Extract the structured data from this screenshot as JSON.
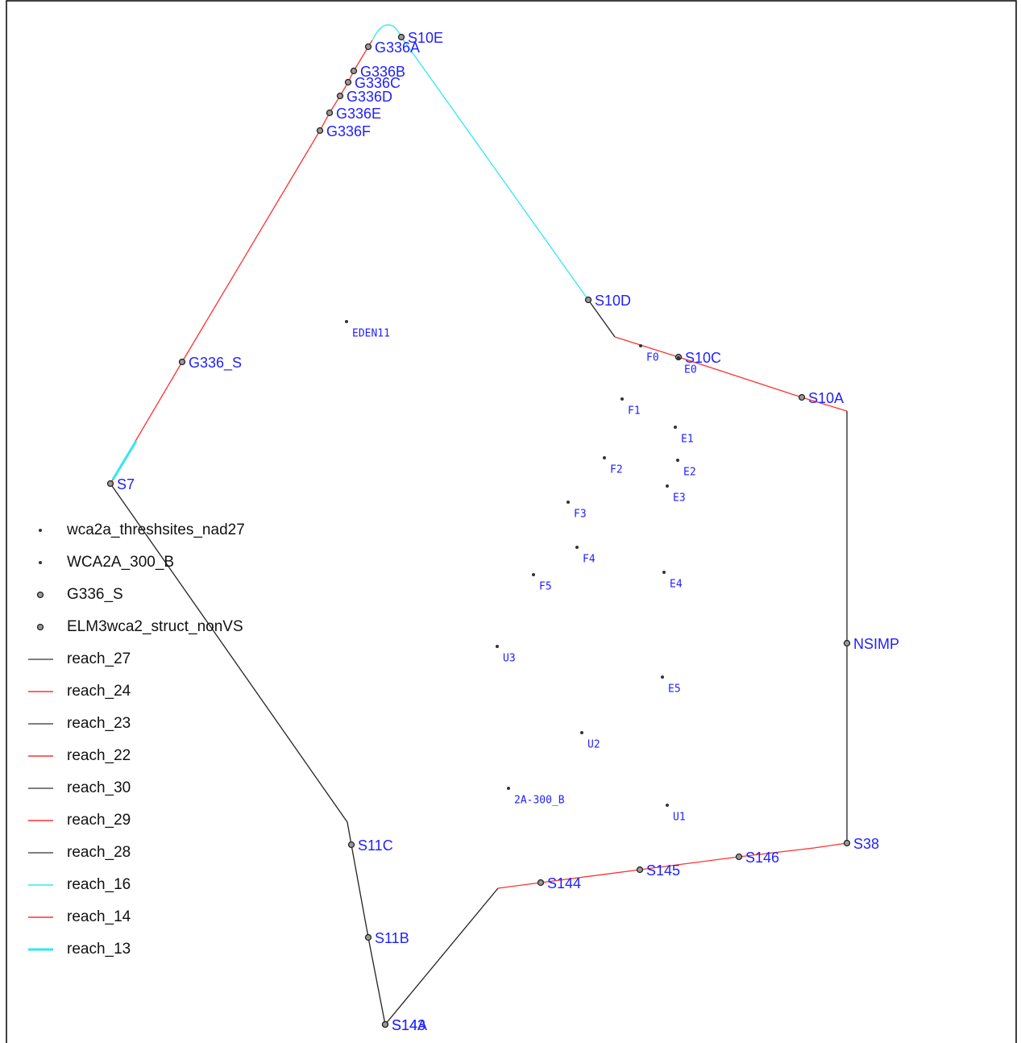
{
  "structures": [
    "S10E",
    "G336A",
    "G336B",
    "G336C",
    "G336D",
    "G336E",
    "G336F",
    "S10D",
    "S10C",
    "S10A",
    "G336_S",
    "S7",
    "NSIMP",
    "S38",
    "S146",
    "S145",
    "S144",
    "S11C",
    "S11B",
    "S143",
    "S14A"
  ],
  "sites": [
    "EDEN11",
    "F0",
    "E0",
    "F1",
    "E1",
    "F2",
    "E2",
    "E3",
    "F3",
    "F4",
    "F5",
    "E4",
    "U3",
    "E5",
    "U2",
    "2A-300_B",
    "U1"
  ],
  "legend": [
    "wca2a_threshsites_nad27",
    "WCA2A_300_B",
    "G336_S",
    "ELM3wca2_struct_nonVS",
    "reach_27",
    "reach_24",
    "reach_23",
    "reach_22",
    "reach_30",
    "reach_29",
    "reach_28",
    "reach_16",
    "reach_14",
    "reach_13"
  ]
}
